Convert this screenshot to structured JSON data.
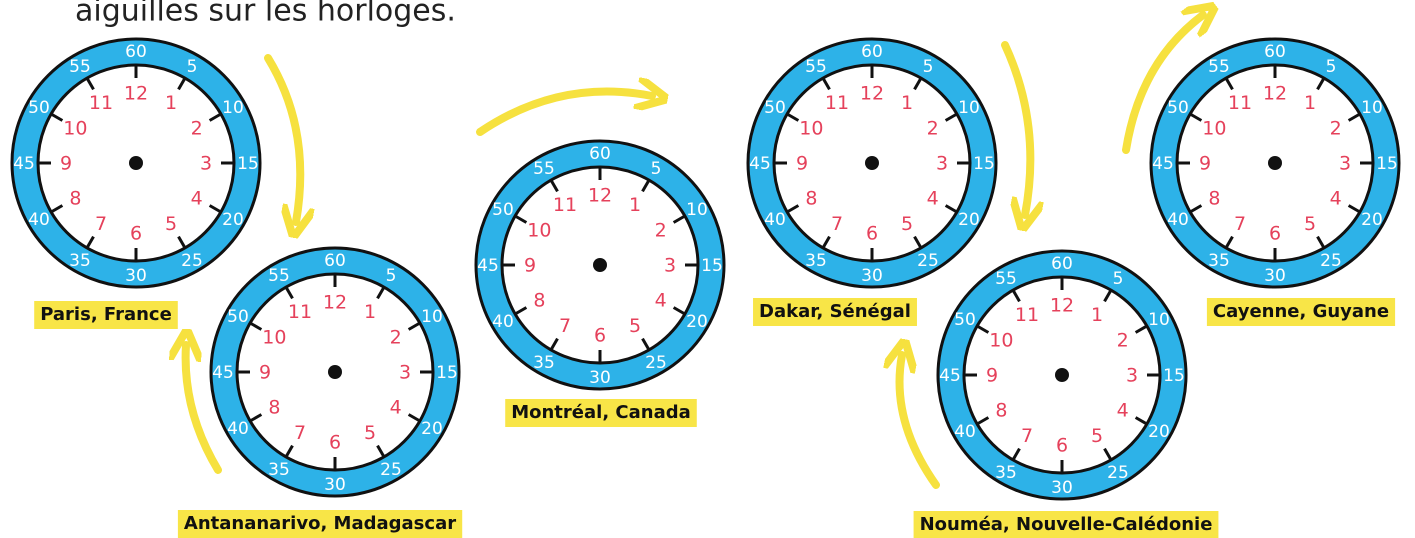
{
  "header": {
    "title": "aiguilles sur les horloges."
  },
  "clock_face": {
    "hours": [
      "12",
      "1",
      "2",
      "3",
      "4",
      "5",
      "6",
      "7",
      "8",
      "9",
      "10",
      "11"
    ],
    "minutes": [
      "60",
      "5",
      "10",
      "15",
      "20",
      "25",
      "30",
      "35",
      "40",
      "45",
      "50",
      "55"
    ]
  },
  "clocks": [
    {
      "label": "Paris, France"
    },
    {
      "label": "Antananarivo, Madagascar"
    },
    {
      "label": "Montréal, Canada"
    },
    {
      "label": "Dakar, Sénégal"
    },
    {
      "label": "Nouméa, Nouvelle-Calédonie"
    },
    {
      "label": "Cayenne, Guyane"
    }
  ]
}
